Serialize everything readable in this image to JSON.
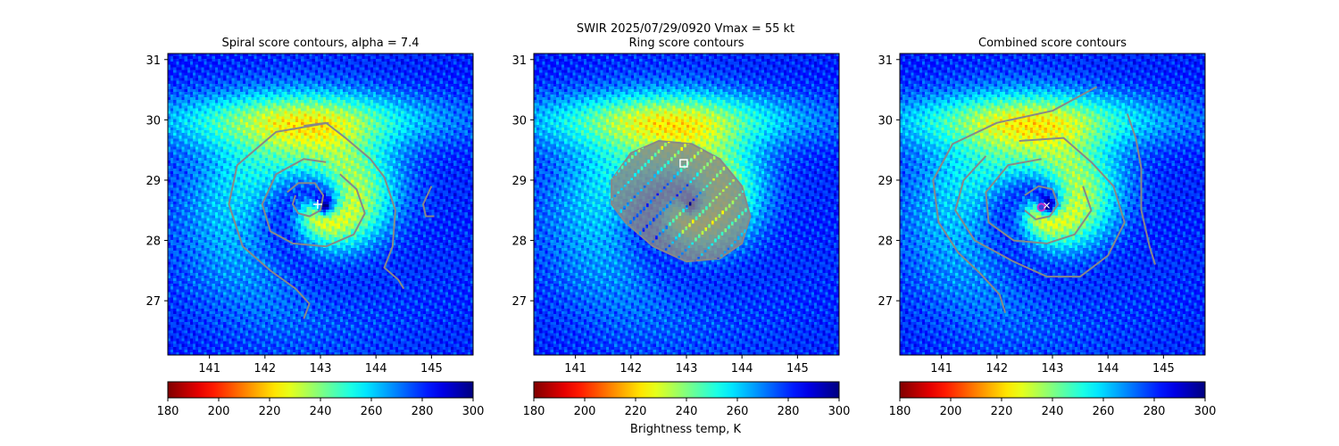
{
  "figure": {
    "suptitle_line1": "SWIR  2025/07/29/0920    Vmax = 55 kt",
    "colorbar_label": "Brightness temp, K"
  },
  "colors": {
    "contour": "#888888",
    "marker_white": "#ffffff",
    "center_marker": "#cc33cc",
    "center_marker_fill": "#3344dd"
  },
  "chart_data": [
    {
      "type": "heatmap",
      "title": "Spiral score contours, alpha =  7.4",
      "xlim": [
        140.25,
        145.75
      ],
      "ylim": [
        26.1,
        31.1
      ],
      "xticks": [
        "141",
        "142",
        "143",
        "144",
        "145"
      ],
      "yticks": [
        "27",
        "28",
        "29",
        "30",
        "31"
      ],
      "colormap": "jet",
      "clim": [
        180,
        300
      ],
      "colorbar_ticks": [
        "180",
        "200",
        "220",
        "240",
        "260",
        "280",
        "300"
      ],
      "storm_center": [
        143.0,
        28.55
      ],
      "marker": {
        "shape": "plus",
        "lon": 142.95,
        "lat": 28.6
      },
      "contours": [
        [
          [
            142.4,
            28.8
          ],
          [
            142.6,
            28.95
          ],
          [
            142.9,
            28.95
          ],
          [
            143.05,
            28.75
          ],
          [
            143.0,
            28.5
          ],
          [
            142.8,
            28.4
          ],
          [
            142.6,
            28.45
          ],
          [
            142.5,
            28.6
          ],
          [
            142.55,
            28.75
          ]
        ],
        [
          [
            143.1,
            29.3
          ],
          [
            142.7,
            29.35
          ],
          [
            142.2,
            29.1
          ],
          [
            141.95,
            28.6
          ],
          [
            142.1,
            28.15
          ],
          [
            142.5,
            27.95
          ],
          [
            143.1,
            27.9
          ],
          [
            143.6,
            28.1
          ],
          [
            143.8,
            28.45
          ],
          [
            143.65,
            28.85
          ],
          [
            143.35,
            29.1
          ]
        ],
        [
          [
            142.7,
            29.9
          ],
          [
            143.1,
            29.95
          ],
          [
            143.45,
            29.7
          ],
          [
            143.9,
            29.35
          ],
          [
            144.15,
            29.05
          ],
          [
            144.35,
            28.5
          ],
          [
            144.3,
            27.9
          ],
          [
            144.15,
            27.55
          ],
          [
            144.4,
            27.35
          ],
          [
            144.5,
            27.2
          ]
        ],
        [
          [
            143.15,
            29.95
          ],
          [
            142.2,
            29.8
          ],
          [
            141.5,
            29.25
          ],
          [
            141.35,
            28.6
          ],
          [
            141.6,
            27.9
          ],
          [
            142.1,
            27.5
          ],
          [
            142.55,
            27.2
          ],
          [
            142.8,
            26.95
          ],
          [
            142.7,
            26.7
          ]
        ],
        [
          [
            145.0,
            28.9
          ],
          [
            144.85,
            28.6
          ],
          [
            144.9,
            28.4
          ],
          [
            145.05,
            28.4
          ]
        ]
      ]
    },
    {
      "type": "heatmap",
      "title": "Ring score contours",
      "xlim": [
        140.25,
        145.75
      ],
      "ylim": [
        26.1,
        31.1
      ],
      "xticks": [
        "141",
        "142",
        "143",
        "144",
        "145"
      ],
      "yticks": [
        "27",
        "28",
        "29",
        "30",
        "31"
      ],
      "colormap": "jet",
      "clim": [
        180,
        300
      ],
      "colorbar_ticks": [
        "180",
        "200",
        "220",
        "240",
        "260",
        "280",
        "300"
      ],
      "storm_center": [
        143.0,
        28.55
      ],
      "marker": {
        "shape": "square",
        "lon": 142.95,
        "lat": 29.28
      },
      "contour_region": [
        [
          141.65,
          29.0
        ],
        [
          142.0,
          29.45
        ],
        [
          142.5,
          29.65
        ],
        [
          143.1,
          29.6
        ],
        [
          143.6,
          29.35
        ],
        [
          144.0,
          28.9
        ],
        [
          144.15,
          28.4
        ],
        [
          144.0,
          27.95
        ],
        [
          143.6,
          27.7
        ],
        [
          143.0,
          27.65
        ],
        [
          142.4,
          27.9
        ],
        [
          141.9,
          28.3
        ],
        [
          141.65,
          28.6
        ]
      ]
    },
    {
      "type": "heatmap",
      "title": "Combined score contours",
      "xlim": [
        140.25,
        145.75
      ],
      "ylim": [
        26.1,
        31.1
      ],
      "xticks": [
        "141",
        "142",
        "143",
        "144",
        "145"
      ],
      "yticks": [
        "27",
        "28",
        "29",
        "30",
        "31"
      ],
      "colormap": "jet",
      "clim": [
        180,
        300
      ],
      "colorbar_ticks": [
        "180",
        "200",
        "220",
        "240",
        "260",
        "280",
        "300"
      ],
      "storm_center": [
        142.85,
        28.55
      ],
      "marker": {
        "shape": "circle",
        "lon": 142.8,
        "lat": 28.55
      },
      "contours": [
        [
          [
            142.5,
            28.75
          ],
          [
            142.75,
            28.9
          ],
          [
            143.0,
            28.85
          ],
          [
            143.1,
            28.6
          ],
          [
            142.95,
            28.4
          ],
          [
            142.7,
            28.35
          ],
          [
            142.5,
            28.5
          ]
        ],
        [
          [
            142.8,
            29.35
          ],
          [
            142.2,
            29.25
          ],
          [
            141.8,
            28.8
          ],
          [
            141.85,
            28.3
          ],
          [
            142.3,
            28.0
          ],
          [
            142.9,
            27.95
          ],
          [
            143.4,
            28.1
          ],
          [
            143.7,
            28.5
          ],
          [
            143.55,
            28.9
          ]
        ],
        [
          [
            142.4,
            29.65
          ],
          [
            143.2,
            29.7
          ],
          [
            143.7,
            29.3
          ],
          [
            144.1,
            28.9
          ],
          [
            144.3,
            28.3
          ],
          [
            144.0,
            27.75
          ],
          [
            143.5,
            27.4
          ],
          [
            142.9,
            27.4
          ],
          [
            142.3,
            27.65
          ],
          [
            141.6,
            28.0
          ],
          [
            141.25,
            28.5
          ],
          [
            141.4,
            29.0
          ],
          [
            141.8,
            29.4
          ]
        ],
        [
          [
            143.8,
            30.55
          ],
          [
            143.0,
            30.15
          ],
          [
            142.0,
            29.95
          ],
          [
            141.2,
            29.6
          ],
          [
            140.85,
            29.0
          ],
          [
            140.95,
            28.3
          ],
          [
            141.3,
            27.8
          ],
          [
            141.7,
            27.45
          ],
          [
            142.05,
            27.1
          ],
          [
            142.15,
            26.8
          ]
        ],
        [
          [
            144.35,
            30.1
          ],
          [
            144.5,
            29.7
          ],
          [
            144.6,
            29.2
          ],
          [
            144.6,
            28.5
          ],
          [
            144.75,
            27.9
          ],
          [
            144.85,
            27.6
          ]
        ]
      ]
    }
  ]
}
